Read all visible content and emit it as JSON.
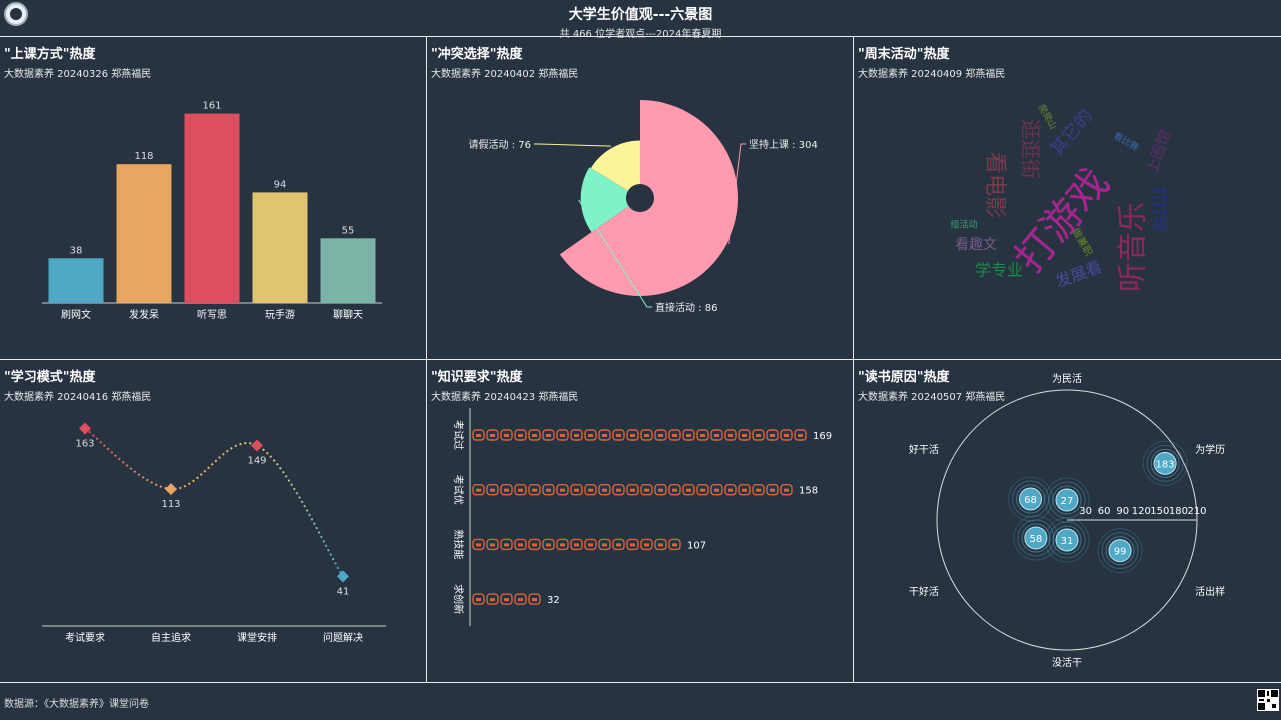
{
  "header": {
    "title": "大学生价值观---六景图",
    "subtitle": "共 466 位学者观点---2024年春夏期"
  },
  "footer": {
    "source": "数据源：《大数据素养》课堂问卷"
  },
  "panels": [
    {
      "title": "\"上课方式\"热度",
      "subtitle": "大数据素养 20240326 郑燕福民"
    },
    {
      "title": "\"冲突选择\"热度",
      "subtitle": "大数据素养 20240402 郑燕福民"
    },
    {
      "title": "\"周末活动\"热度",
      "subtitle": "大数据素养 20240409 郑燕福民"
    },
    {
      "title": "\"学习模式\"热度",
      "subtitle": "大数据素养 20240416 郑燕福民"
    },
    {
      "title": "\"知识要求\"热度",
      "subtitle": "大数据素养 20240423 郑燕福民"
    },
    {
      "title": "\"读书原因\"热度",
      "subtitle": "大数据素养 20240507 郑燕福民"
    }
  ],
  "chart_data": [
    {
      "type": "bar",
      "categories": [
        "刷网文",
        "发发呆",
        "听写思",
        "玩手游",
        "聊聊天"
      ],
      "values": [
        38,
        118,
        161,
        94,
        55
      ],
      "colors": [
        "#4fa8c4",
        "#e9a660",
        "#dc4f5e",
        "#e0c56e",
        "#7bb3a7"
      ]
    },
    {
      "type": "pie",
      "rose": true,
      "slices": [
        {
          "label": "坚持上课",
          "value": 304,
          "color": "#ff9aaf"
        },
        {
          "label": "直接活动",
          "value": 86,
          "color": "#7ef3c7"
        },
        {
          "label": "请假活动",
          "value": 76,
          "color": "#fdf398"
        }
      ],
      "slice_labels": [
        "坚持上课 : 304",
        "直接活动 : 86",
        "请假活动 : 76"
      ]
    },
    {
      "type": "wordcloud",
      "words": [
        {
          "text": "打游戏",
          "color": "#a6268f"
        },
        {
          "text": "听音乐",
          "color": "#8a2a5a"
        },
        {
          "text": "看电影",
          "color": "#7a3a4a"
        },
        {
          "text": "逛逛街",
          "color": "#6a3350"
        },
        {
          "text": "其它的",
          "color": "#3a3f8a"
        },
        {
          "text": "上图馆",
          "color": "#5a2f6a"
        },
        {
          "text": "打打球",
          "color": "#25318a"
        },
        {
          "text": "看趣文",
          "color": "#7a5a8a"
        },
        {
          "text": "学专业",
          "color": "#1a8a4a"
        },
        {
          "text": "发展看",
          "color": "#4a4a9a"
        },
        {
          "text": "做兼职",
          "color": "#6a8a2a"
        },
        {
          "text": "组活动",
          "color": "#3aa07a"
        },
        {
          "text": "爬爬山",
          "color": "#6a8a3a"
        },
        {
          "text": "看比赛",
          "color": "#3a6aaa"
        }
      ]
    },
    {
      "type": "line",
      "categories": [
        "考试要求",
        "自主追求",
        "课堂安排",
        "问题解决"
      ],
      "values": [
        163,
        113,
        149,
        41
      ],
      "point_colors": [
        "#dc4f5e",
        "#e9a660",
        "#dc4f5e",
        "#4fa8c4"
      ],
      "value_labels": [
        "163",
        "113",
        "149",
        "41"
      ],
      "smooth": true,
      "dashed": true
    },
    {
      "type": "bar",
      "orientation": "horizontal",
      "pictorial": true,
      "categories": [
        "考试过",
        "考试优",
        "熟技能",
        "求创新"
      ],
      "values": [
        169,
        158,
        107,
        32
      ],
      "value_labels": [
        "169",
        "158",
        "107",
        "32"
      ],
      "color": "#d9643a"
    },
    {
      "type": "scatter",
      "polar": true,
      "angle_labels": [
        "为民活",
        "为学历",
        "活出样",
        "没活干",
        "干好活",
        "好干活"
      ],
      "radius_ticks": [
        "30",
        "60",
        "90",
        "120",
        "150",
        "180",
        "210"
      ],
      "radius_max": 210,
      "points": [
        {
          "angle_index": 1,
          "value": 183,
          "label": "183"
        },
        {
          "angle_index": 2,
          "value": 99,
          "label": "99"
        },
        {
          "angle_index": 3,
          "value": 31,
          "label": "31"
        },
        {
          "angle_index": 4,
          "value": 58,
          "label": "58"
        },
        {
          "angle_index": 5,
          "value": 68,
          "label": "68"
        },
        {
          "angle_index": 0,
          "value": 27,
          "label": "27"
        }
      ]
    }
  ]
}
